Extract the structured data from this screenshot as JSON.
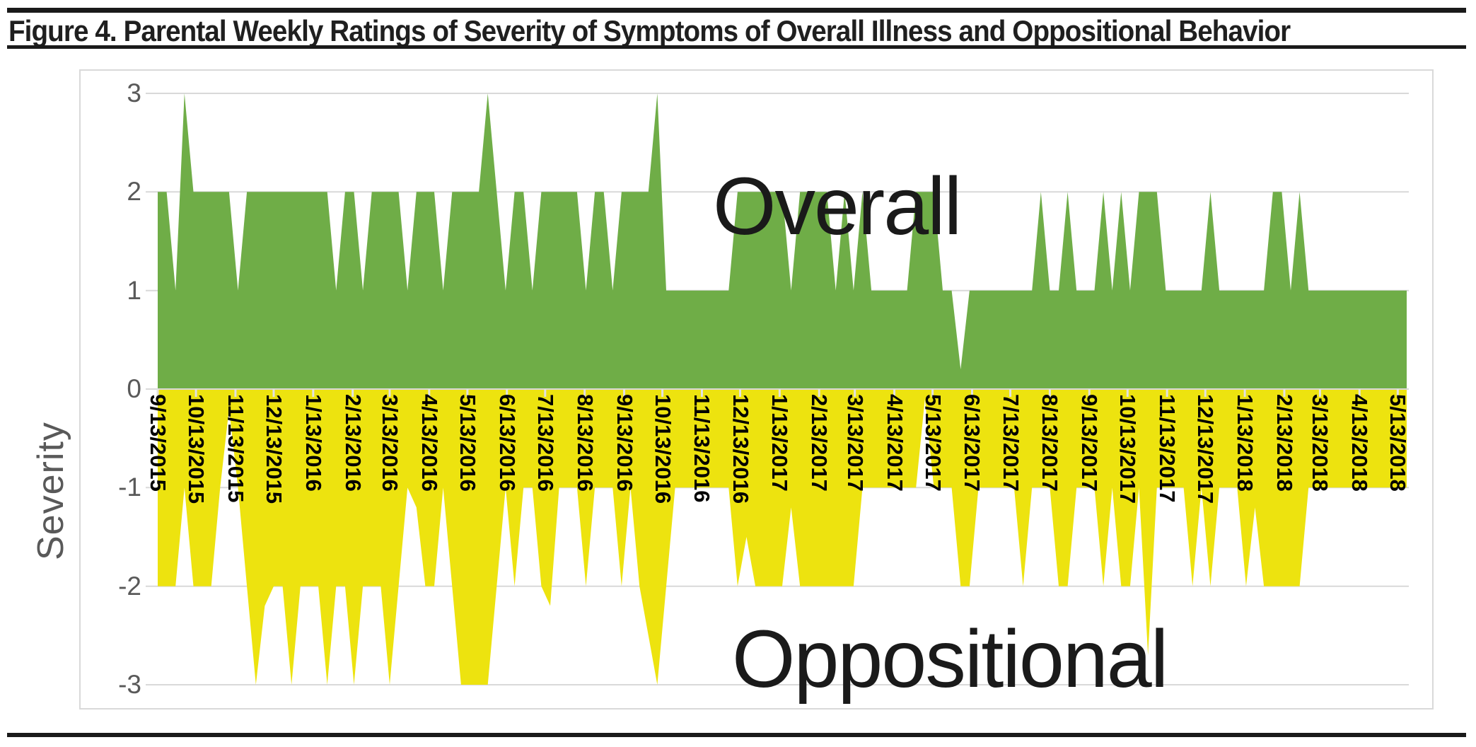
{
  "figure": {
    "title": "Figure 4. Parental Weekly Ratings of Severity of Symptoms of Overall Illness and Oppositional Behavior"
  },
  "chart_data": {
    "type": "area",
    "title": "",
    "xlabel": "",
    "ylabel": "Severity",
    "ylim": [
      -3,
      3
    ],
    "yticks": [
      "3",
      "2",
      "1",
      "0",
      "-1",
      "-2",
      "-3"
    ],
    "ytick_values": [
      3,
      2,
      1,
      0,
      -1,
      -2,
      -3
    ],
    "grid": "horizontal",
    "x_unit": "weeks",
    "x_start_date": "9/13/2015",
    "x_tick_labels": [
      "9/13/2015",
      "10/13/2015",
      "11/13/2015",
      "12/13/2015",
      "1/13/2016",
      "2/13/2016",
      "3/13/2016",
      "4/13/2016",
      "5/13/2016",
      "6/13/2016",
      "7/13/2016",
      "8/13/2016",
      "9/13/2016",
      "10/13/2016",
      "11/13/2016",
      "12/13/2016",
      "1/13/2017",
      "2/13/2017",
      "3/13/2017",
      "4/13/2017",
      "5/13/2017",
      "6/13/2017",
      "7/13/2017",
      "8/13/2017",
      "9/13/2017",
      "10/13/2017",
      "11/13/2017",
      "12/13/2017",
      "1/13/2018",
      "2/13/2018",
      "3/13/2018",
      "4/13/2018",
      "5/13/2018"
    ],
    "annotations": [
      {
        "text": "Overall",
        "series": "Overall"
      },
      {
        "text": "Oppositional",
        "series": "Oppositional"
      }
    ],
    "colors": {
      "overall_fill": "#6fad47",
      "oppositional_fill": "#ede30f",
      "gridline": "#d9d9d9",
      "axis_line": "#d9d9d9",
      "axis_text": "#595959",
      "date_text": "#000000",
      "annotation_text": "#1a1a1a",
      "rule_black": "#1a1a1a"
    },
    "series": [
      {
        "name": "Overall",
        "values": [
          2,
          2,
          1,
          3,
          2,
          2,
          2,
          2,
          2,
          1,
          2,
          2,
          2,
          2,
          2,
          2,
          2,
          2,
          2,
          2,
          1,
          2,
          2,
          1,
          2,
          2,
          2,
          2,
          1,
          2,
          2,
          2,
          1,
          2,
          2,
          2,
          2,
          3,
          2,
          1,
          2,
          2,
          1,
          2,
          2,
          2,
          2,
          2,
          1,
          2,
          2,
          1,
          2,
          2,
          2,
          2,
          3,
          1,
          1,
          1,
          1,
          1,
          1,
          1,
          1,
          2,
          2,
          2,
          2,
          2,
          2,
          1,
          2,
          2,
          2,
          2,
          1,
          2,
          1,
          2,
          1,
          1,
          1,
          1,
          1,
          2,
          2,
          2,
          1,
          1,
          0.2,
          1,
          1,
          1,
          1,
          1,
          1,
          1,
          1,
          2,
          1,
          1,
          2,
          1,
          1,
          1,
          2,
          1,
          2,
          1,
          2,
          2,
          2,
          1,
          1,
          1,
          1,
          1,
          2,
          1,
          1,
          1,
          1,
          1,
          1,
          2,
          2,
          1,
          2,
          1,
          1,
          1,
          1,
          1,
          1,
          1,
          1,
          1,
          1,
          1,
          1
        ]
      },
      {
        "name": "Oppositional",
        "values": [
          -2,
          -2,
          -2,
          -1,
          -2,
          -2,
          -2,
          -1,
          -0.2,
          -1,
          -2,
          -3,
          -2.2,
          -2,
          -2,
          -3,
          -2,
          -2,
          -2,
          -3,
          -2,
          -2,
          -3,
          -2,
          -2,
          -2,
          -3,
          -2,
          -1,
          -1.2,
          -2,
          -2,
          -1,
          -2,
          -3,
          -3,
          -3,
          -3,
          -2,
          -1,
          -2,
          -1,
          -1,
          -2,
          -2.2,
          -1,
          -1,
          -1,
          -2,
          -1,
          -1,
          -1,
          -2,
          -1,
          -2,
          -2.5,
          -3,
          -2,
          -1,
          -1,
          -1,
          -1,
          -1,
          -1,
          -1,
          -2,
          -1.5,
          -2,
          -2,
          -2,
          -2,
          -1.2,
          -2,
          -2,
          -2,
          -2,
          -2,
          -2,
          -2,
          -1,
          -1,
          -1,
          -1,
          -1,
          -1,
          -1,
          -0.1,
          -1,
          -1,
          -1,
          -2,
          -2,
          -1,
          -1,
          -1,
          -1,
          -1,
          -2,
          -1,
          -1,
          -1,
          -2,
          -2,
          -1,
          -1,
          -1,
          -2,
          -1,
          -2,
          -2,
          -1,
          -2.7,
          -1,
          -1,
          -1,
          -1,
          -2,
          -1,
          -2,
          -1,
          -1,
          -1,
          -2,
          -1.2,
          -2,
          -2,
          -2,
          -2,
          -2,
          -1,
          -1,
          -1,
          -1,
          -1,
          -1,
          -1,
          -1,
          -1,
          -1,
          -1,
          -1
        ]
      }
    ]
  }
}
